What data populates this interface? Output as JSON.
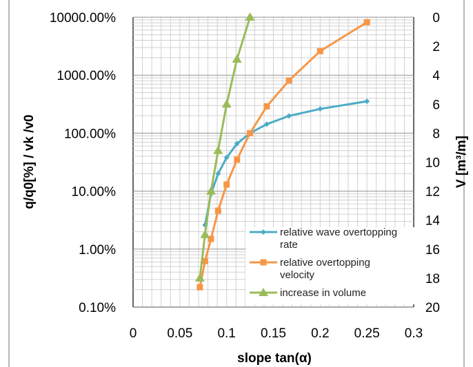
{
  "chart_data": {
    "type": "line",
    "xlabel": "slope tan(α)",
    "xlim": [
      0,
      0.3
    ],
    "x_ticks": [
      "0",
      "0.05",
      "0.1",
      "0.15",
      "0.2",
      "0.25",
      "0.3"
    ],
    "ylabel_left": "q/q0[%] / vk /v0",
    "ylim_left": [
      0.001,
      100
    ],
    "y_scale_left": "log",
    "y_ticks_left": [
      "0.10%",
      "1.00%",
      "10.00%",
      "100.00%",
      "1000.00%",
      "10000.00%"
    ],
    "ylabel_right": "V [m³/m]",
    "ylim_right": [
      0,
      20
    ],
    "y_right_inverted": true,
    "y_ticks_right": [
      "0",
      "2",
      "4",
      "6",
      "8",
      "10",
      "12",
      "14",
      "16",
      "18",
      "20"
    ],
    "grid": true,
    "legend_position": "bottom-right",
    "series": [
      {
        "name": "relative wave overtopping rate",
        "axis": "left",
        "color": "#4bacc6",
        "marker": "diamond",
        "x": [
          0.0769,
          0.0833,
          0.0909,
          0.1,
          0.1111,
          0.125,
          0.1429,
          0.1667,
          0.2,
          0.25
        ],
        "y": [
          0.026,
          0.09,
          0.2,
          0.38,
          0.66,
          1.0,
          1.43,
          1.98,
          2.62,
          3.55
        ]
      },
      {
        "name": "relative overtopping velocity",
        "axis": "left",
        "color": "#f79646",
        "marker": "square",
        "x": [
          0.0714,
          0.0769,
          0.0833,
          0.0909,
          0.1,
          0.1111,
          0.125,
          0.1429,
          0.1667,
          0.2,
          0.25
        ],
        "y": [
          0.0022,
          0.0062,
          0.015,
          0.046,
          0.13,
          0.35,
          1.0,
          2.9,
          8.1,
          26,
          82
        ]
      },
      {
        "name": "increase in volume",
        "axis": "right",
        "color": "#9bbb59",
        "marker": "triangle",
        "x": [
          0.0714,
          0.0769,
          0.0833,
          0.0909,
          0.1,
          0.1111,
          0.125
        ],
        "y": [
          18,
          15,
          12,
          9.2,
          6,
          2.9,
          0
        ]
      }
    ]
  }
}
